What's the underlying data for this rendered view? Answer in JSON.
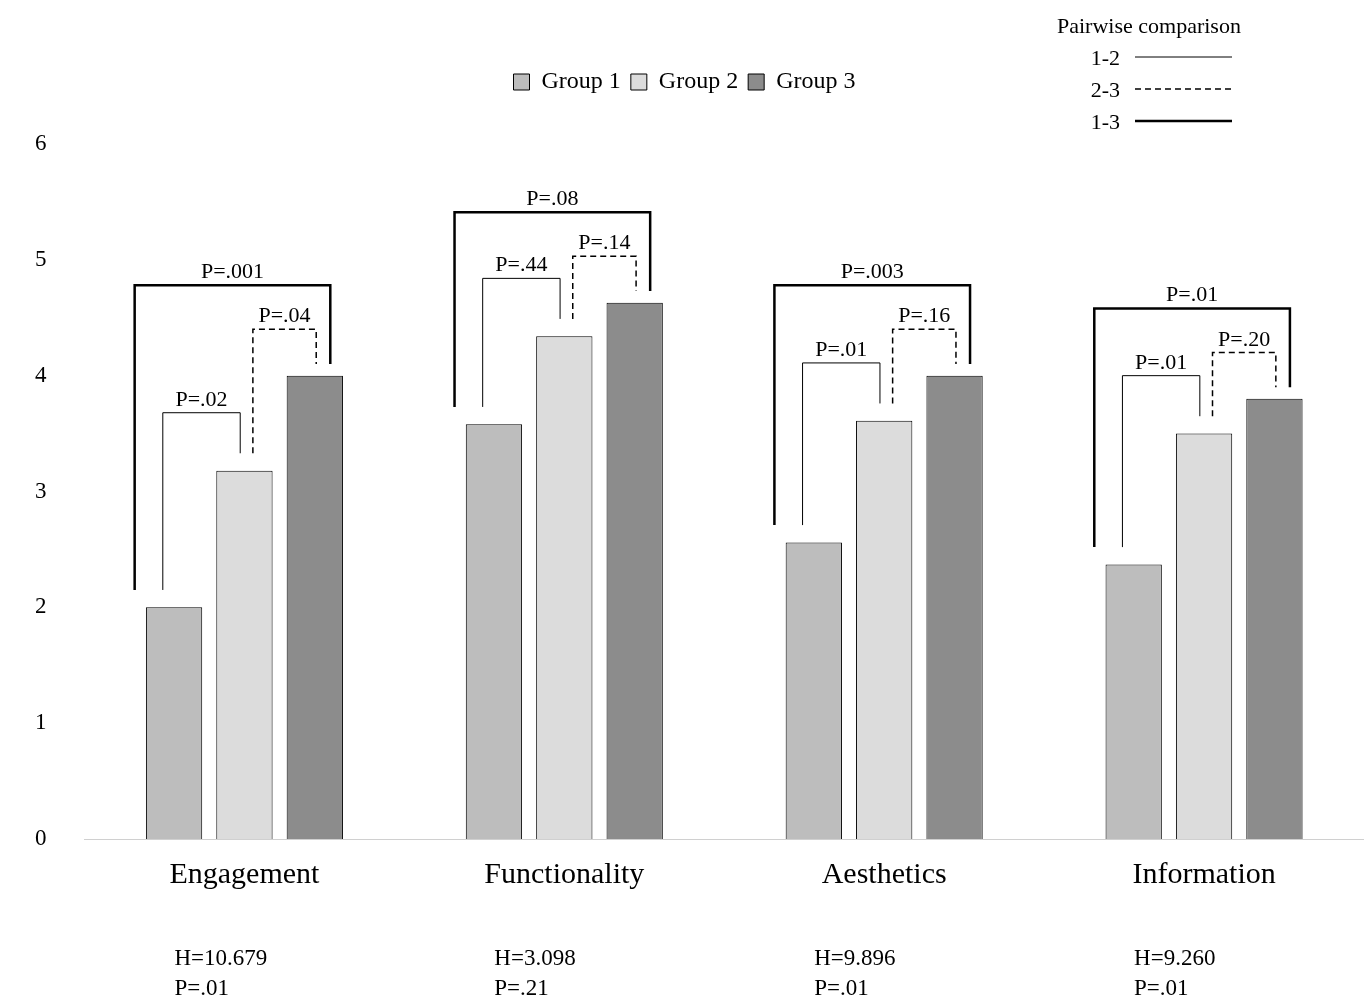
{
  "chart_data": {
    "type": "bar",
    "categories": [
      "Engagement",
      "Functionality",
      "Aesthetics",
      "Information"
    ],
    "series": [
      {
        "name": "Group 1",
        "color": "#bdbdbd",
        "values": [
          2.0,
          3.58,
          2.56,
          2.37
        ]
      },
      {
        "name": "Group 2",
        "color": "#dcdcdc",
        "values": [
          3.18,
          4.34,
          3.61,
          3.5
        ]
      },
      {
        "name": "Group 3",
        "color": "#8c8c8c",
        "values": [
          4.0,
          4.63,
          4.0,
          3.8
        ]
      }
    ],
    "ylim": [
      0,
      6
    ],
    "yticks": [
      0,
      1,
      2,
      3,
      4,
      5,
      6
    ],
    "legend": "top",
    "annotations": [
      "Pairwise comparison",
      "1-2",
      "2-3",
      "1-3",
      "P=.02",
      "P=.04",
      "P=.001",
      "H=10.679",
      "P=.01",
      "P=.44",
      "P=.14",
      "P=.08",
      "H=3.098",
      "P=.21",
      "P=.01",
      "P=.16",
      "P=.003",
      "H=9.896",
      "P=.01",
      "P=.01",
      "P=.20",
      "P=.01",
      "H=9.260",
      "P=.01"
    ]
  }
}
